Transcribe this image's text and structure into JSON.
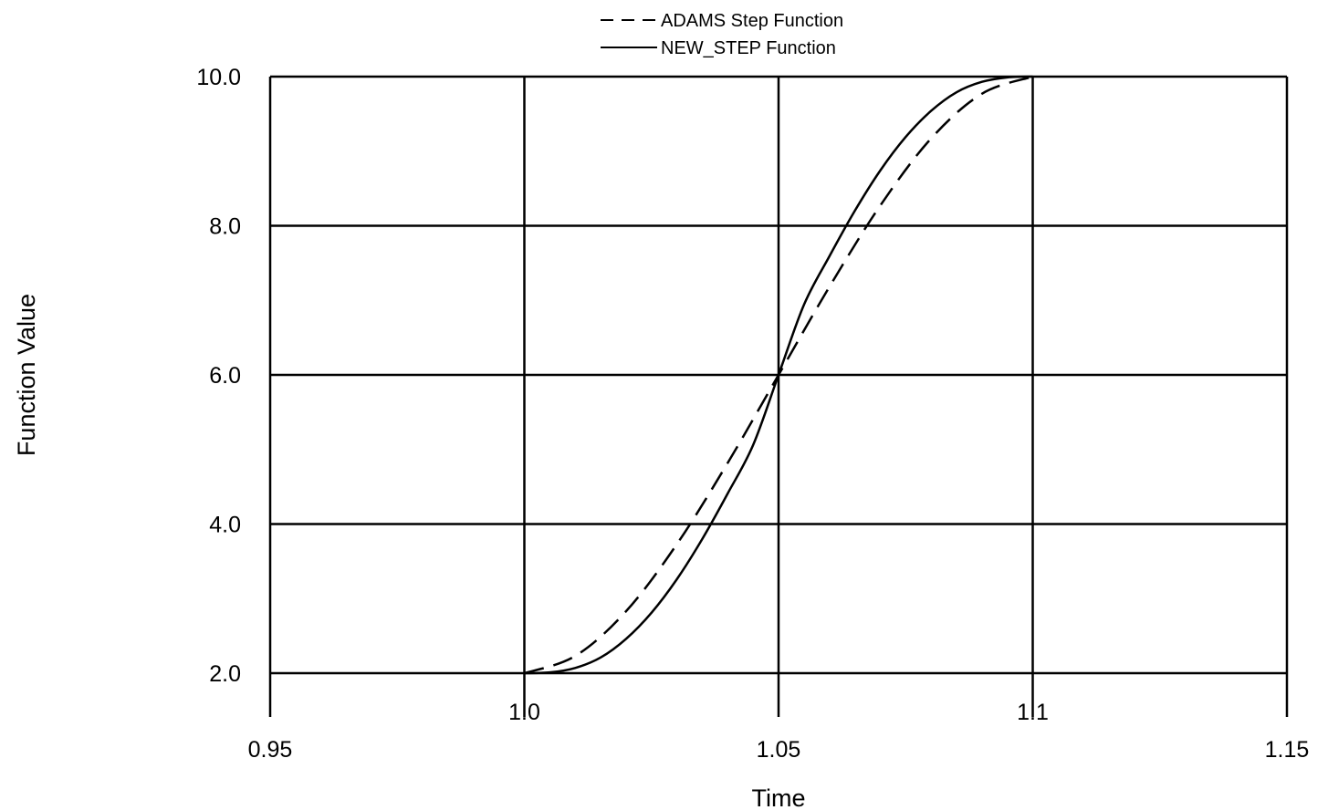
{
  "chart_data": {
    "type": "line",
    "title": "",
    "xlabel": "Time",
    "ylabel": "Function Value",
    "xlim": [
      0.95,
      1.15
    ],
    "ylim": [
      2.0,
      10.0
    ],
    "grid": true,
    "legend_position": "top-center",
    "x_ticks_lower": [
      "0.95",
      "1.05",
      "1.15"
    ],
    "x_ticks_upper": [
      "1.0",
      "1.1"
    ],
    "y_ticks": [
      "2.0",
      "4.0",
      "6.0",
      "8.0",
      "10.0"
    ],
    "series": [
      {
        "name": "ADAMS Step Function",
        "style": "dashed",
        "color": "#000000",
        "x": [
          1.0,
          1.01,
          1.02,
          1.03,
          1.04,
          1.05,
          1.06,
          1.07,
          1.08,
          1.09,
          1.1
        ],
        "y": [
          2.0,
          2.23,
          2.83,
          3.73,
          4.82,
          6.0,
          7.18,
          8.27,
          9.17,
          9.77,
          10.0
        ]
      },
      {
        "name": "NEW_STEP Function",
        "style": "solid",
        "color": "#000000",
        "x": [
          1.0,
          1.005,
          1.01,
          1.015,
          1.02,
          1.025,
          1.03,
          1.035,
          1.04,
          1.045,
          1.05,
          1.055,
          1.06,
          1.065,
          1.07,
          1.075,
          1.08,
          1.085,
          1.09,
          1.095,
          1.1
        ],
        "y": [
          2.0,
          2.01,
          2.07,
          2.21,
          2.46,
          2.81,
          3.26,
          3.8,
          4.41,
          5.06,
          6.0,
          6.94,
          7.59,
          8.2,
          8.74,
          9.19,
          9.54,
          9.79,
          9.93,
          9.99,
          10.0
        ]
      }
    ]
  }
}
